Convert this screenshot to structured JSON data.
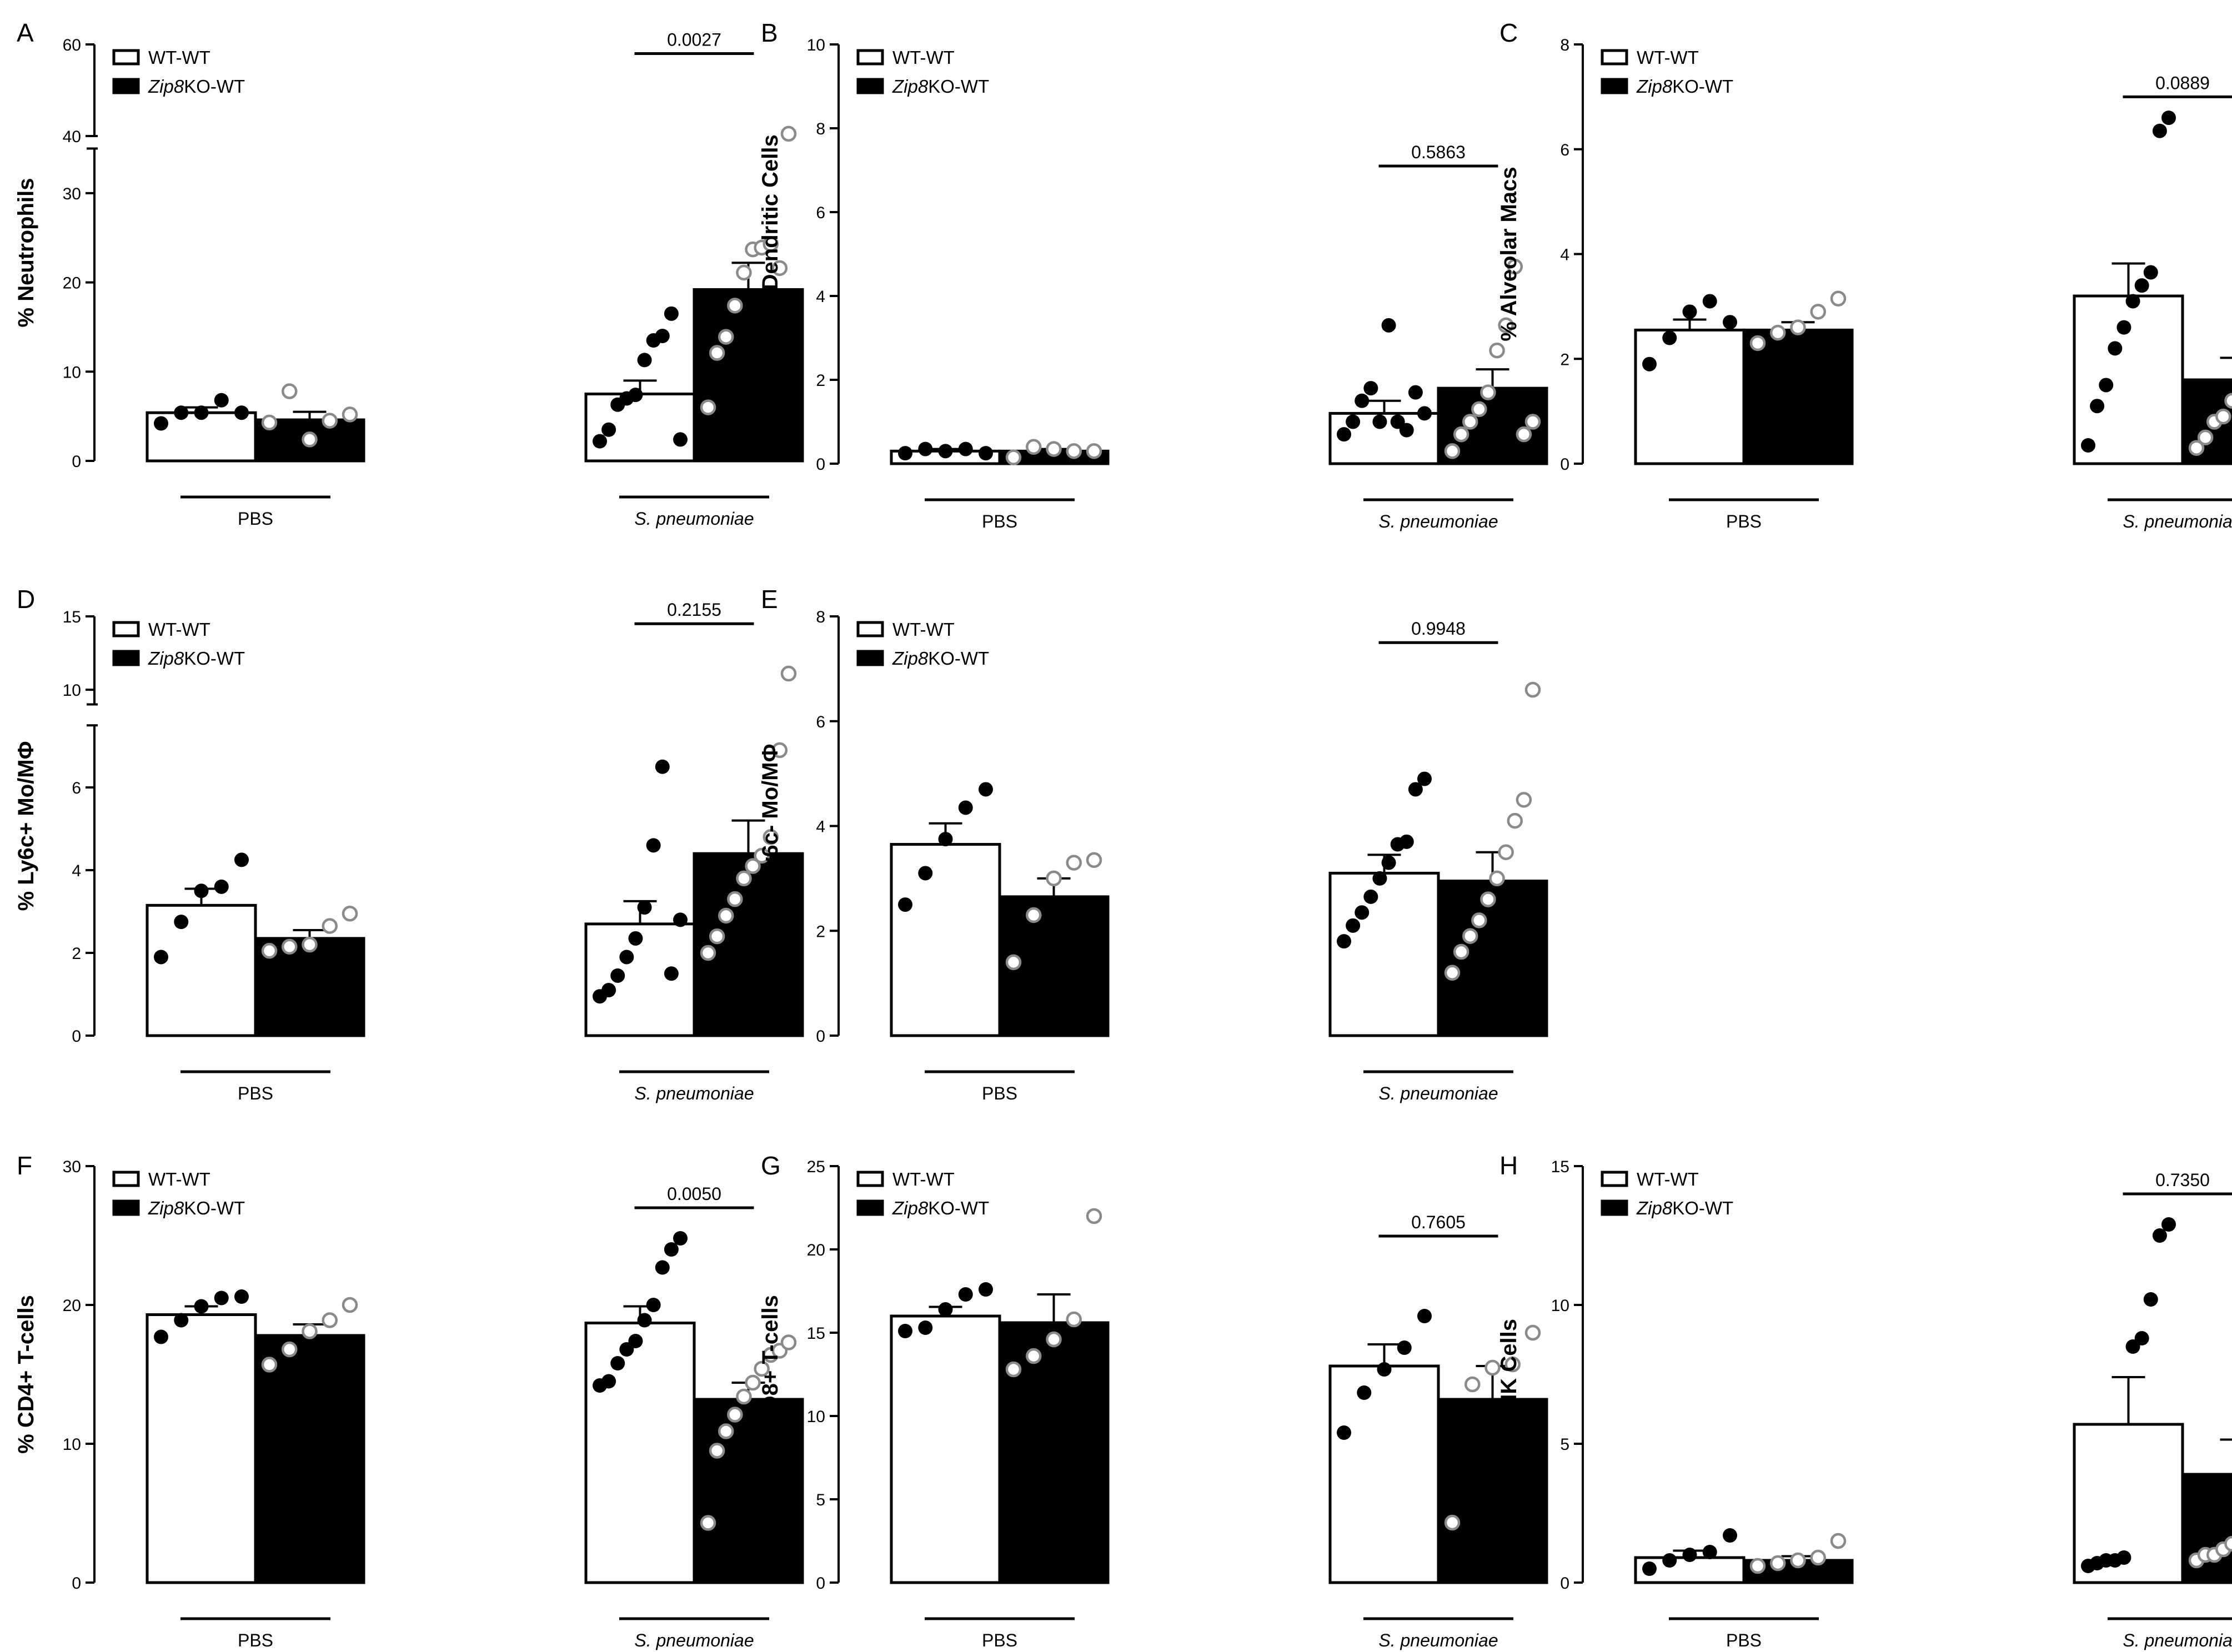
{
  "figure": {
    "legend": {
      "series": [
        "WT-WT",
        "Zip8KO-WT"
      ],
      "italic_prefix": "Zip8",
      "suffix": "KO-WT",
      "plain": "WT-WT"
    },
    "groups": [
      "PBS",
      "S. pneumoniae"
    ]
  },
  "colors": {
    "wt": "#ffffff",
    "ko": "#000000",
    "wt_points": "#000000",
    "ko_points": "#8a8a8a",
    "axis": "#000000"
  },
  "chart_data": [
    {
      "panel": "A",
      "type": "bar",
      "ylabel": "% Neutrophils",
      "ylim": [
        0,
        60
      ],
      "yticks": [
        0,
        10,
        20,
        30,
        40,
        60
      ],
      "broken_axis": {
        "lower": [
          0,
          35
        ],
        "upper": [
          40,
          60
        ]
      },
      "categories": [
        "PBS",
        "S. pneumoniae"
      ],
      "series": [
        {
          "name": "WT-WT",
          "values": [
            5.4,
            7.5
          ],
          "sem": [
            0.6,
            1.5
          ],
          "points": [
            [
              4.2,
              5.4,
              5.4,
              6.8,
              5.4
            ],
            [
              2.2,
              3.5,
              6.3,
              7.0,
              7.4,
              11.3,
              13.5,
              14.0,
              16.5,
              2.4
            ]
          ]
        },
        {
          "name": "Zip8KO-WT",
          "values": [
            4.6,
            19.2
          ],
          "sem": [
            0.9,
            3.0
          ],
          "points": [
            [
              4.3,
              7.8,
              2.4,
              4.5,
              5.2
            ],
            [
              6.0,
              12.1,
              13.9,
              17.4,
              21.1,
              23.7,
              23.9,
              24.3,
              21.6,
              40.5
            ]
          ]
        }
      ],
      "pvalue": {
        "text": "0.0027",
        "group": 1,
        "y": 58
      }
    },
    {
      "panel": "B",
      "type": "bar",
      "ylabel": "% Total Dendritic Cells",
      "ylim": [
        0,
        10
      ],
      "yticks": [
        0,
        2,
        4,
        6,
        8,
        10
      ],
      "categories": [
        "PBS",
        "S. pneumoniae"
      ],
      "series": [
        {
          "name": "WT-WT",
          "values": [
            0.3,
            1.2
          ],
          "sem": [
            0.05,
            0.3
          ],
          "points": [
            [
              0.25,
              0.35,
              0.3,
              0.35,
              0.25
            ],
            [
              0.7,
              1.0,
              1.5,
              1.8,
              1.0,
              3.3,
              1.0,
              0.8,
              1.7,
              1.2
            ]
          ]
        },
        {
          "name": "Zip8KO-WT",
          "values": [
            0.3,
            1.8
          ],
          "sem": [
            0.05,
            0.45
          ],
          "points": [
            [
              0.15,
              0.4,
              0.35,
              0.3,
              0.3
            ],
            [
              0.3,
              0.7,
              1.0,
              1.3,
              1.7,
              2.7,
              3.3,
              4.7,
              0.7,
              1.0
            ]
          ]
        }
      ],
      "pvalue": {
        "text": "0.5863",
        "group": 1,
        "y": 7.1
      }
    },
    {
      "panel": "C",
      "type": "bar",
      "ylabel": "% Alveolar Macs",
      "ylim": [
        0,
        8
      ],
      "yticks": [
        0,
        2,
        4,
        6,
        8
      ],
      "categories": [
        "PBS",
        "S. pneumoniae"
      ],
      "series": [
        {
          "name": "WT-WT",
          "values": [
            2.55,
            3.2
          ],
          "sem": [
            0.2,
            0.62
          ],
          "points": [
            [
              1.9,
              2.4,
              2.9,
              3.1,
              2.7
            ],
            [
              0.35,
              1.1,
              1.5,
              2.2,
              2.6,
              3.1,
              3.4,
              3.65,
              6.35,
              6.6
            ]
          ]
        },
        {
          "name": "Zip8KO-WT",
          "values": [
            2.55,
            1.6
          ],
          "sem": [
            0.15,
            0.42
          ],
          "points": [
            [
              2.3,
              2.5,
              2.6,
              2.9,
              3.15
            ],
            [
              0.3,
              0.5,
              0.8,
              0.9,
              1.2,
              1.6,
              2.0,
              2.6,
              2.95,
              4.15
            ]
          ]
        }
      ],
      "pvalue": {
        "text": "0.0889",
        "group": 1,
        "y": 7.0
      }
    },
    {
      "panel": "D",
      "type": "bar",
      "ylabel": "% Ly6c+ Mo/MΦ",
      "ylim": [
        0,
        15
      ],
      "yticks": [
        0,
        2,
        4,
        6,
        10,
        15
      ],
      "broken_axis": {
        "lower": [
          0,
          7.5
        ],
        "upper": [
          9,
          15
        ]
      },
      "categories": [
        "PBS",
        "S. pneumoniae"
      ],
      "series": [
        {
          "name": "WT-WT",
          "values": [
            3.15,
            2.7
          ],
          "sem": [
            0.4,
            0.55
          ],
          "points": [
            [
              1.9,
              2.75,
              3.5,
              3.6,
              4.25
            ],
            [
              0.95,
              1.1,
              1.45,
              1.9,
              2.35,
              3.1,
              4.6,
              6.5,
              1.5,
              2.8
            ]
          ]
        },
        {
          "name": "Zip8KO-WT",
          "values": [
            2.35,
            4.4
          ],
          "sem": [
            0.2,
            0.8
          ],
          "points": [
            [
              2.05,
              2.15,
              2.2,
              2.65,
              2.95
            ],
            [
              2.0,
              2.4,
              2.9,
              3.3,
              3.8,
              4.1,
              4.35,
              4.8,
              6.9,
              11.1
            ]
          ]
        }
      ],
      "pvalue": {
        "text": "0.2155",
        "group": 1,
        "y": 14.5
      }
    },
    {
      "panel": "E",
      "type": "bar",
      "ylabel": "% Ly6c- Mo/MΦ",
      "ylim": [
        0,
        8
      ],
      "yticks": [
        0,
        2,
        4,
        6,
        8
      ],
      "categories": [
        "PBS",
        "S. pneumoniae"
      ],
      "series": [
        {
          "name": "WT-WT",
          "values": [
            3.65,
            3.1
          ],
          "sem": [
            0.4,
            0.35
          ],
          "points": [
            [
              2.5,
              3.1,
              3.75,
              4.35,
              4.7
            ],
            [
              1.8,
              2.1,
              2.35,
              2.65,
              3.0,
              3.3,
              3.65,
              3.7,
              4.7,
              4.9
            ]
          ]
        },
        {
          "name": "Zip8KO-WT",
          "values": [
            2.65,
            2.95
          ],
          "sem": [
            0.35,
            0.55
          ],
          "points": [
            [
              1.4,
              2.3,
              3.0,
              3.3,
              3.35
            ],
            [
              1.2,
              1.6,
              1.9,
              2.2,
              2.6,
              3.0,
              3.5,
              4.1,
              4.5,
              6.6
            ]
          ]
        }
      ],
      "pvalue": {
        "text": "0.9948",
        "group": 1,
        "y": 7.5
      }
    },
    {
      "panel": "F",
      "type": "bar",
      "ylabel": "% CD4+ T-cells",
      "ylim": [
        0,
        30
      ],
      "yticks": [
        0,
        10,
        20,
        30
      ],
      "categories": [
        "PBS",
        "S. pneumoniae"
      ],
      "series": [
        {
          "name": "WT-WT",
          "values": [
            19.3,
            18.7
          ],
          "sem": [
            0.6,
            1.2
          ],
          "points": [
            [
              17.7,
              18.9,
              19.9,
              20.5,
              20.6
            ],
            [
              14.2,
              14.5,
              15.8,
              16.8,
              17.4,
              18.9,
              20.0,
              22.7,
              24.0,
              24.8
            ]
          ]
        },
        {
          "name": "Zip8KO-WT",
          "values": [
            17.8,
            13.2
          ],
          "sem": [
            0.8,
            1.2
          ],
          "points": [
            [
              15.7,
              16.8,
              18.1,
              18.9,
              20.0
            ],
            [
              4.3,
              9.5,
              10.9,
              12.1,
              13.4,
              14.4,
              15.4,
              16.4,
              16.7,
              17.3
            ]
          ]
        }
      ],
      "pvalue": {
        "text": "0.0050",
        "group": 1,
        "y": 27.0
      }
    },
    {
      "panel": "G",
      "type": "bar",
      "ylabel": "% CD8+ T-cells",
      "ylim": [
        0,
        25
      ],
      "yticks": [
        0,
        5,
        10,
        15,
        20,
        25
      ],
      "categories": [
        "PBS",
        "S. pneumoniae"
      ],
      "series": [
        {
          "name": "WT-WT",
          "values": [
            16.0,
            13.0
          ],
          "sem": [
            0.55,
            1.3
          ],
          "points": [
            [
              15.1,
              15.3,
              16.4,
              17.3,
              17.6
            ],
            [
              9.0,
              11.4,
              12.8,
              14.1,
              16.0
            ]
          ]
        },
        {
          "name": "Zip8KO-WT",
          "values": [
            15.6,
            11.0
          ],
          "sem": [
            1.7,
            2.0
          ],
          "points": [
            [
              12.8,
              13.6,
              14.6,
              15.8,
              22.0
            ],
            [
              3.6,
              11.9,
              12.9,
              13.1,
              15.0
            ]
          ]
        }
      ],
      "pvalue": {
        "text": "0.7605",
        "group": 1,
        "y": 20.8
      }
    },
    {
      "panel": "H",
      "type": "bar",
      "ylabel": "%NK Cells",
      "ylim": [
        0,
        15
      ],
      "yticks": [
        0,
        5,
        10,
        15
      ],
      "categories": [
        "PBS",
        "S. pneumoniae"
      ],
      "series": [
        {
          "name": "WT-WT",
          "values": [
            0.9,
            5.7
          ],
          "sem": [
            0.25,
            1.7
          ],
          "points": [
            [
              0.5,
              0.8,
              1.0,
              1.1,
              1.7
            ],
            [
              0.6,
              0.7,
              0.8,
              0.8,
              0.9,
              8.5,
              8.8,
              10.2,
              12.5,
              12.9
            ]
          ]
        },
        {
          "name": "Zip8KO-WT",
          "values": [
            0.8,
            3.9
          ],
          "sem": [
            0.15,
            1.25
          ],
          "points": [
            [
              0.6,
              0.7,
              0.8,
              0.9,
              1.5
            ],
            [
              0.8,
              1.0,
              1.0,
              1.2,
              1.4,
              2.5,
              4.5,
              6.9,
              7.3,
              12.5
            ]
          ]
        }
      ],
      "pvalue": {
        "text": "0.7350",
        "group": 1,
        "y": 14.0
      }
    }
  ]
}
